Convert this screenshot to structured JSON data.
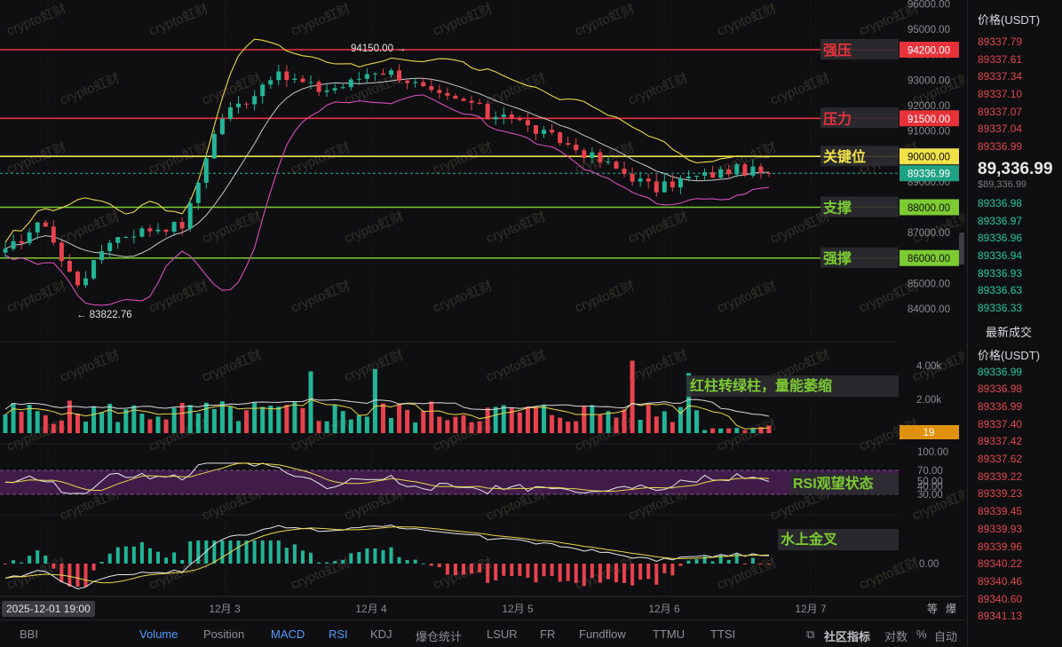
{
  "chart_data": {
    "type": "candlestick",
    "panels": [
      "price",
      "volume",
      "rsi",
      "macd"
    ],
    "price_axis": [
      "96000.00",
      "95000.00",
      "94000.00",
      "93000.00",
      "92000.00",
      "91000.00",
      "90000.00",
      "89000.00",
      "88000.00",
      "87000.00",
      "86000.00",
      "85000.00",
      "84000.00"
    ],
    "x_ticks": [
      "12月 3",
      "12月 4",
      "12月 5",
      "12月 6",
      "12月 7"
    ],
    "levels": [
      {
        "name": "强压",
        "price": "94200.00",
        "value": 94200,
        "color": "#e8323a"
      },
      {
        "name": "压力",
        "price": "91500.00",
        "value": 91500,
        "color": "#e8323a"
      },
      {
        "name": "关键位",
        "price": "90000.00",
        "value": 90000,
        "color": "#f2e24a"
      },
      {
        "name": "支撑",
        "price": "88000.00",
        "value": 88000,
        "color": "#7ccb32"
      },
      {
        "name": "强撑",
        "price": "86000.00",
        "value": 86000,
        "color": "#7ccb32"
      }
    ],
    "current_price_tag": "89336.99",
    "current_price": 89336.99,
    "annotations": {
      "high": "94150.00",
      "low": "83822.76"
    },
    "volume_axis": [
      "4.00k",
      "2.00k"
    ],
    "volume_tag": "19",
    "volume_note": "红柱转绿柱，量能萎缩",
    "rsi_axis": [
      "100.00",
      "70.00",
      "50.00",
      "40.00",
      "30.00"
    ],
    "rsi_note": "RSI观望状态",
    "macd_axis": [
      "0.00"
    ],
    "macd_note": "水上金叉",
    "watermark": "crypto虹财",
    "colors": {
      "up": "#22b597",
      "down": "#e8424e",
      "boll_upper": "#e8d84a",
      "boll_lower": "#d64fb8",
      "boll_mid": "#c8c8c8"
    }
  },
  "date_chip": "2025-12-01 19:00",
  "bottom_right_icons": [
    "等",
    "爆"
  ],
  "bottom_tabs": [
    {
      "label": "BBI",
      "active": false
    },
    {
      "label": "Volume",
      "active": true
    },
    {
      "label": "Position",
      "active": false
    },
    {
      "label": "MACD",
      "active": true
    },
    {
      "label": "RSI",
      "active": true
    },
    {
      "label": "KDJ",
      "active": false
    },
    {
      "label": "爆仓统计",
      "active": false
    },
    {
      "label": "LSUR",
      "active": false
    },
    {
      "label": "FR",
      "active": false
    },
    {
      "label": "Fundflow",
      "active": false
    },
    {
      "label": "TTMU",
      "active": false
    },
    {
      "label": "TTSI",
      "active": false
    }
  ],
  "bottom_right": {
    "indicators": "社区指标",
    "log": "对数",
    "percent": "%",
    "auto": "自动"
  },
  "orderbook": {
    "header": "价格(USDT)",
    "asks": [
      "89337.79",
      "89337.61",
      "89337.34",
      "89337.10",
      "89337.07",
      "89337.04",
      "89336.99"
    ],
    "last_price": "89,336.99",
    "last_price_sub": "$89,336.99",
    "bids": [
      "89336.98",
      "89336.97",
      "89336.96",
      "89336.94",
      "89336.93",
      "89336.63",
      "89336.33"
    ],
    "trades_title": "最新成交",
    "trades_header": "价格(USDT)",
    "trades": [
      {
        "p": "89336.99",
        "s": "buy"
      },
      {
        "p": "89336.98",
        "s": "sell"
      },
      {
        "p": "89336.99",
        "s": "sell"
      },
      {
        "p": "89337.40",
        "s": "sell"
      },
      {
        "p": "89337.42",
        "s": "sell"
      },
      {
        "p": "89337.62",
        "s": "sell"
      },
      {
        "p": "89339.22",
        "s": "sell"
      },
      {
        "p": "89339.23",
        "s": "sell"
      },
      {
        "p": "89339.45",
        "s": "sell"
      },
      {
        "p": "89339.93",
        "s": "sell"
      },
      {
        "p": "89339.96",
        "s": "sell"
      },
      {
        "p": "89340.22",
        "s": "sell"
      },
      {
        "p": "89340.46",
        "s": "sell"
      },
      {
        "p": "89340.60",
        "s": "sell"
      },
      {
        "p": "89341.13",
        "s": "sell"
      }
    ]
  }
}
